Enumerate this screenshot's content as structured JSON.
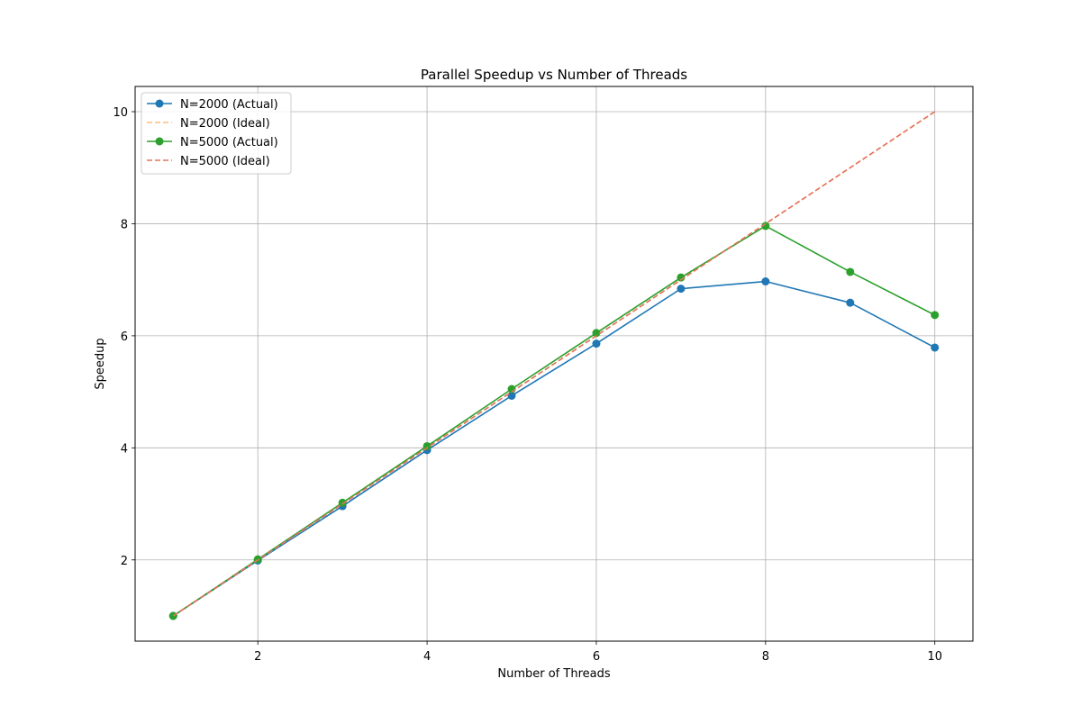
{
  "chart_data": {
    "type": "line",
    "title": "Parallel Speedup vs Number of Threads",
    "xlabel": "Number of Threads",
    "ylabel": "Speedup",
    "xlim": [
      0.55,
      10.45
    ],
    "ylim": [
      0.55,
      10.45
    ],
    "xticks": [
      2,
      4,
      6,
      8,
      10
    ],
    "yticks": [
      2,
      4,
      6,
      8,
      10
    ],
    "grid": true,
    "legend_position": "top-left",
    "x": [
      1,
      2,
      3,
      4,
      5,
      6,
      7,
      8,
      9,
      10
    ],
    "series": [
      {
        "name": "N=2000 (Actual)",
        "style": "solid",
        "marker": "circle",
        "color": "#1f77b4",
        "values": [
          1.0,
          1.99,
          2.96,
          3.96,
          4.93,
          5.86,
          6.84,
          6.97,
          6.59,
          5.79
        ]
      },
      {
        "name": "N=2000 (Ideal)",
        "style": "dashed",
        "marker": "none",
        "color": "#ffbb78",
        "values": [
          1,
          2,
          3,
          4,
          5,
          6,
          7,
          8,
          9,
          10
        ]
      },
      {
        "name": "N=5000 (Actual)",
        "style": "solid",
        "marker": "circle",
        "color": "#2ca02c",
        "values": [
          1.0,
          2.01,
          3.02,
          4.03,
          5.05,
          6.05,
          7.04,
          7.96,
          7.14,
          6.37
        ]
      },
      {
        "name": "N=5000 (Ideal)",
        "style": "dashed",
        "marker": "none",
        "color": "#e3735e",
        "values": [
          1,
          2,
          3,
          4,
          5,
          6,
          7,
          8,
          9,
          10
        ]
      }
    ]
  }
}
